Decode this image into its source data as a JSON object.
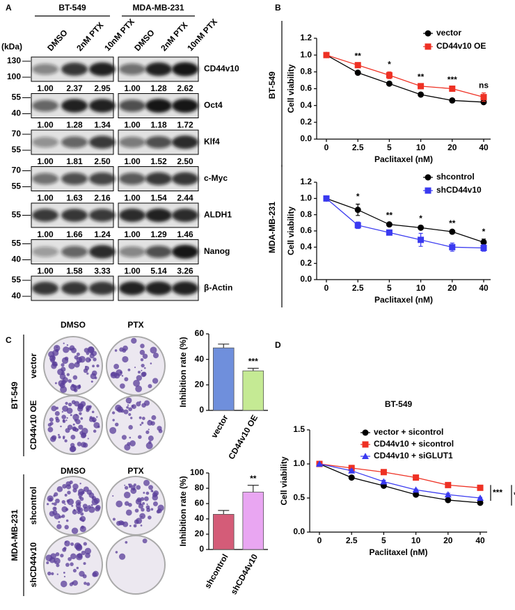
{
  "panel_letters": [
    "A",
    "B",
    "C",
    "D"
  ],
  "panel_a": {
    "kda_label": "(kDa)",
    "cell_lines": [
      "BT-549",
      "MDA-MB-231"
    ],
    "lanes": [
      "DMSO",
      "2nM PTX",
      "10nM PTX"
    ],
    "blots": [
      {
        "protein": "CD44v10",
        "markers": [
          "130",
          "100"
        ],
        "quant": [
          [
            "1.00",
            "2.37",
            "2.95"
          ],
          [
            "1.00",
            "1.28",
            "2.62"
          ]
        ]
      },
      {
        "protein": "Oct4",
        "markers": [
          "55",
          "40"
        ],
        "quant": [
          [
            "1.00",
            "1.28",
            "1.34"
          ],
          [
            "1.00",
            "1.18",
            "1.72"
          ]
        ]
      },
      {
        "protein": "Klf4",
        "markers": [
          "70",
          "55"
        ],
        "quant": [
          [
            "1.00",
            "1.81",
            "2.50"
          ],
          [
            "1.00",
            "1.52",
            "2.50"
          ]
        ]
      },
      {
        "protein": "c-Myc",
        "markers": [
          "70",
          "55"
        ],
        "quant": [
          [
            "1.00",
            "1.63",
            "2.16"
          ],
          [
            "1.00",
            "1.54",
            "2.44"
          ]
        ]
      },
      {
        "protein": "ALDH1",
        "markers": [
          "55"
        ],
        "quant": [
          [
            "1.00",
            "1.66",
            "1.24"
          ],
          [
            "1.00",
            "1.29",
            "1.46"
          ]
        ]
      },
      {
        "protein": "Nanog",
        "markers": [
          "55",
          "40"
        ],
        "quant": [
          [
            "1.00",
            "1.58",
            "3.33"
          ],
          [
            "1.00",
            "5.14",
            "3.26"
          ]
        ]
      },
      {
        "protein": "β-Actin",
        "markers": [
          "55",
          "40"
        ]
      }
    ]
  },
  "panel_c": {
    "treatments": [
      "DMSO",
      "PTX"
    ],
    "groups": [
      {
        "cell_line": "BT-549",
        "rows": [
          "vector",
          "CD44v10 OE"
        ]
      },
      {
        "cell_line": "MDA-MB-231",
        "rows": [
          "shcontrol",
          "shCD44v10"
        ]
      }
    ]
  },
  "chart_data": [
    {
      "type": "line",
      "row_label": "BT-549",
      "xlabel": "Paclitaxel (nM)",
      "ylabel": "Cell viability",
      "categories": [
        "0",
        "2.5",
        "5",
        "10",
        "20",
        "40"
      ],
      "ylim": [
        0,
        1.2
      ],
      "yticks": [
        {
          "value": 0,
          "label": "0.0"
        },
        {
          "value": 0.2,
          "label": "0.2"
        },
        {
          "value": 0.4,
          "label": "0.4"
        },
        {
          "value": 0.6,
          "label": "0.6"
        },
        {
          "value": 0.8,
          "label": "0.8"
        },
        {
          "value": 1,
          "label": "1.0"
        },
        {
          "value": 1.2,
          "label": "1.2"
        }
      ],
      "series": [
        {
          "name": "vector",
          "color": "#000000",
          "marker": "circle",
          "values": [
            1.0,
            0.79,
            0.66,
            0.53,
            0.46,
            0.44
          ],
          "errors": [
            0,
            0.01,
            0.01,
            0.01,
            0.01,
            0.02
          ]
        },
        {
          "name": "CD44v10 OE",
          "color": "#ee3124",
          "marker": "square",
          "values": [
            1.0,
            0.88,
            0.76,
            0.63,
            0.6,
            0.5
          ],
          "errors": [
            0,
            0.02,
            0.04,
            0.02,
            0.02,
            0.05
          ]
        }
      ],
      "annotations": [
        null,
        "**",
        "*",
        "**",
        "***",
        "ns"
      ]
    },
    {
      "type": "line",
      "row_label": "MDA-MB-231",
      "xlabel": "Paclitaxel (nM)",
      "ylabel": "Cell viability",
      "categories": [
        "0",
        "2.5",
        "5",
        "10",
        "20",
        "40"
      ],
      "ylim": [
        0,
        1.2
      ],
      "yticks": [
        {
          "value": 0,
          "label": "0.0"
        },
        {
          "value": 0.2,
          "label": "0.2"
        },
        {
          "value": 0.4,
          "label": "0.4"
        },
        {
          "value": 0.6,
          "label": "0.6"
        },
        {
          "value": 0.8,
          "label": "0.8"
        },
        {
          "value": 1,
          "label": "1.0"
        },
        {
          "value": 1.2,
          "label": "1.2"
        }
      ],
      "series": [
        {
          "name": "shcontrol",
          "color": "#000000",
          "marker": "circle",
          "values": [
            1.0,
            0.86,
            0.68,
            0.64,
            0.59,
            0.46
          ],
          "errors": [
            0,
            0.07,
            0.02,
            0.02,
            0.01,
            0.04
          ]
        },
        {
          "name": "shCD44v10",
          "color": "#3a3af0",
          "marker": "square",
          "values": [
            1.0,
            0.67,
            0.58,
            0.49,
            0.4,
            0.39
          ],
          "errors": [
            0,
            0.04,
            0.01,
            0.08,
            0.05,
            0.04
          ]
        }
      ],
      "annotations": [
        null,
        "*",
        "**",
        "*",
        "**",
        "*"
      ]
    },
    {
      "type": "bar",
      "ylabel": "Inhibition rate (%)",
      "categories": [
        "vector",
        "CD44v10 OE"
      ],
      "values": [
        49,
        31
      ],
      "errors": [
        3,
        2
      ],
      "colors": [
        "#6f8fdc",
        "#c5ea94"
      ],
      "ylim": [
        0,
        60
      ],
      "yticks": [
        0,
        20,
        40,
        60
      ],
      "annotations": [
        null,
        "***"
      ]
    },
    {
      "type": "bar",
      "ylabel": "Inhibition rate (%)",
      "categories": [
        "shcontrol",
        "shCD44v10"
      ],
      "values": [
        46,
        75
      ],
      "errors": [
        5,
        9
      ],
      "colors": [
        "#d45c78",
        "#e9a6f2"
      ],
      "ylim": [
        0,
        100
      ],
      "yticks": [
        0,
        20,
        40,
        60,
        80,
        100
      ],
      "annotations": [
        null,
        "**"
      ]
    },
    {
      "type": "line",
      "title": "BT-549",
      "xlabel": "Paclitaxel (nM)",
      "ylabel": "Cell viability",
      "categories": [
        "0",
        "2.5",
        "5",
        "10",
        "20",
        "40"
      ],
      "ylim": [
        0,
        1.5
      ],
      "yticks": [
        {
          "value": 0,
          "label": "0.0"
        },
        {
          "value": 0.5,
          "label": "0.5"
        },
        {
          "value": 1,
          "label": "1.0"
        },
        {
          "value": 1.5,
          "label": "1.5"
        }
      ],
      "series": [
        {
          "name": "vector + sicontrol",
          "color": "#000000",
          "marker": "circle",
          "values": [
            1.0,
            0.8,
            0.68,
            0.55,
            0.47,
            0.43
          ],
          "errors": [
            0,
            0.01,
            0.01,
            0.01,
            0.01,
            0.01
          ]
        },
        {
          "name": "CD44v10 + sicontrol",
          "color": "#ee3124",
          "marker": "square",
          "values": [
            1.0,
            0.94,
            0.88,
            0.8,
            0.69,
            0.65
          ],
          "errors": [
            0,
            0.04,
            0.02,
            0.02,
            0.02,
            0.02
          ]
        },
        {
          "name": "CD44v10 + siGLUT1",
          "color": "#3a3af0",
          "marker": "triangle",
          "values": [
            1.0,
            0.9,
            0.74,
            0.62,
            0.55,
            0.5
          ],
          "errors": [
            0,
            0.02,
            0.02,
            0.01,
            0.02,
            0.01
          ]
        }
      ],
      "side_annotations": [
        "***",
        "***"
      ]
    }
  ]
}
